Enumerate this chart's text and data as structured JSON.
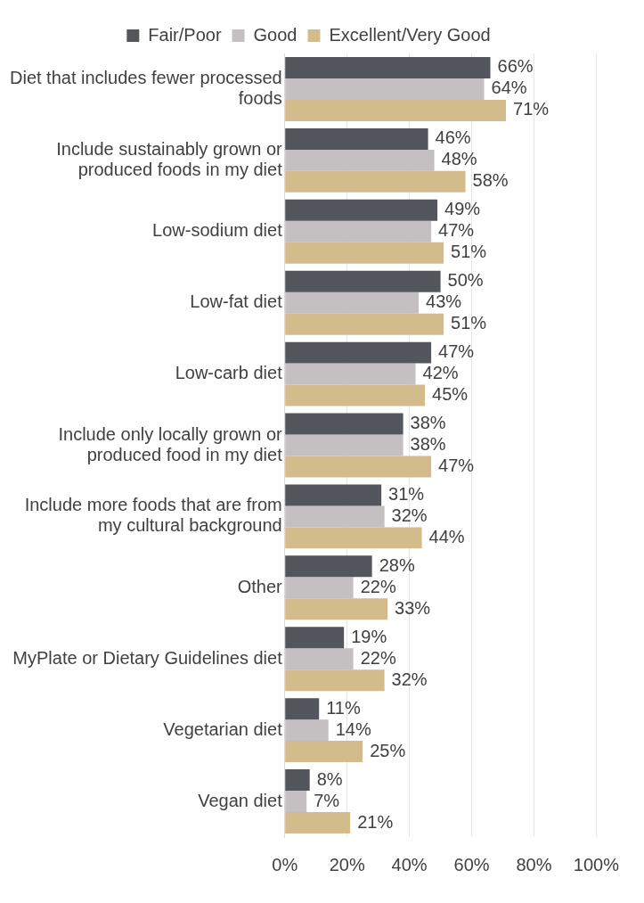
{
  "chart_data": {
    "type": "bar",
    "orientation": "horizontal",
    "categories": [
      "Diet that includes fewer processed foods",
      "Include sustainably grown or produced foods in my diet",
      "Low-sodium diet",
      "Low-fat diet",
      "Low-carb diet",
      "Include only locally grown or produced food in my diet",
      "Include more foods that are from my cultural background",
      "Other",
      "MyPlate or Dietary Guidelines diet",
      "Vegetarian diet",
      "Vegan diet"
    ],
    "series": [
      {
        "name": "Fair/Poor",
        "color": "#53565c",
        "values": [
          66,
          46,
          49,
          50,
          47,
          38,
          31,
          28,
          19,
          11,
          8
        ],
        "value_labels": [
          "66%",
          "46%",
          "49%",
          "50%",
          "47%",
          "38%",
          "31%",
          "28%",
          "19%",
          "11%",
          "8%"
        ]
      },
      {
        "name": "Good",
        "color": "#c4bfc0",
        "values": [
          64,
          48,
          47,
          43,
          42,
          38,
          32,
          22,
          22,
          14,
          7
        ],
        "value_labels": [
          "64%",
          "48%",
          "47%",
          "43%",
          "42%",
          "38%",
          "32%",
          "22%",
          "22%",
          "14%",
          "7%"
        ]
      },
      {
        "name": "Excellent/Very Good",
        "color": "#d3bb8b",
        "values": [
          71,
          58,
          51,
          51,
          45,
          47,
          44,
          33,
          32,
          25,
          21
        ],
        "value_labels": [
          "71%",
          "58%",
          "51%",
          "51%",
          "45%",
          "47%",
          "44%",
          "33%",
          "32%",
          "25%",
          "21%"
        ]
      }
    ],
    "xlim": [
      0,
      100
    ],
    "xticks": [
      {
        "value": 0,
        "label": "0%"
      },
      {
        "value": 20,
        "label": "20%"
      },
      {
        "value": 40,
        "label": "40%"
      },
      {
        "value": 60,
        "label": "60%"
      },
      {
        "value": 80,
        "label": "80%"
      },
      {
        "value": 100,
        "label": "100%"
      }
    ],
    "grid": "x",
    "legend": "top"
  }
}
